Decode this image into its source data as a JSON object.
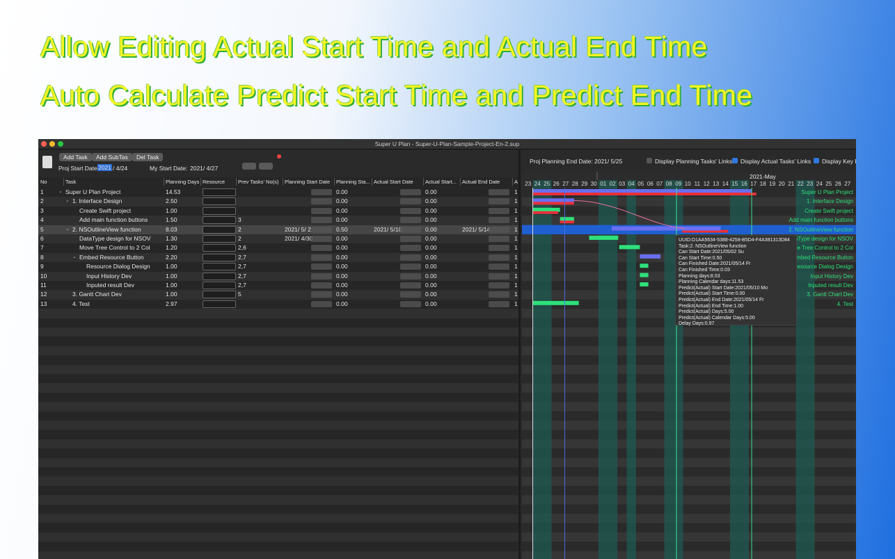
{
  "headline": [
    "Allow Editing Actual Start Time and Actual End Time",
    "Auto Calculate Predict Start Time and Predict End Time"
  ],
  "window": {
    "title": "Super U Plan - Super-U-Plan-Sample-Project-En-2.sup"
  },
  "toolbar": {
    "buttons": [
      "Add Task",
      "Add SubTas",
      "Del Task"
    ],
    "proj_start_label": "Proj Start Date:",
    "proj_start_year": "2021",
    "proj_start_rest": "/  4/24",
    "my_start_label": "My Start Date:",
    "my_start_date": "2021/  4/27"
  },
  "gantt_toolbar": {
    "end_label": "Proj Planning End Date:",
    "end_date": "2021/  5/25",
    "options": [
      {
        "label": "Display Planning Tasks' Links",
        "checked": false
      },
      {
        "label": "Display Actual Tasks' Links",
        "checked": true
      },
      {
        "label": "Display Key R",
        "checked": true
      }
    ]
  },
  "table": {
    "columns": [
      "No",
      "Task",
      "Planning Days",
      "Resource",
      "Prev Tasks' No(s)",
      "Planning Start Date",
      "Planning Sta...",
      "Actual Start Date",
      "Actual Start...",
      "Actual End Date",
      "A"
    ],
    "rows": [
      {
        "no": "1",
        "task": "Super U Plan Project",
        "level": 0,
        "expandable": true,
        "days": "14.53",
        "plan_start_time": "0.00",
        "actual_start_time": "0.00",
        "more": "1"
      },
      {
        "no": "2",
        "task": "1. Interface Design",
        "level": 1,
        "expandable": true,
        "days": "2.50",
        "plan_start_time": "0.00",
        "actual_start_time": "0.00",
        "more": "1"
      },
      {
        "no": "3",
        "task": "Create Swift project",
        "level": 2,
        "days": "1.00",
        "plan_start_time": "0.00",
        "actual_start_time": "0.00",
        "more": "1"
      },
      {
        "no": "4",
        "task": "Add main function buttons",
        "level": 2,
        "days": "1.50",
        "prev": "3",
        "plan_start_time": "0.00",
        "actual_start_time": "0.00",
        "more": "1"
      },
      {
        "no": "5",
        "task": "2. NSOutlineView function",
        "level": 1,
        "expandable": true,
        "selected": true,
        "days": "8.03",
        "prev": "2",
        "plan_start_date": "2021/  5/  2",
        "plan_start_time": "0.50",
        "actual_start_date": "2021/  5/10",
        "actual_start_time": "0.00",
        "actual_end_date": "2021/  5/14",
        "more": "1"
      },
      {
        "no": "6",
        "task": "DataType design for NSOV",
        "level": 2,
        "days": "1.30",
        "prev": "2",
        "plan_start_date": "2021/  4/30",
        "plan_start_time": "0.00",
        "actual_start_time": "0.00",
        "more": "1"
      },
      {
        "no": "7",
        "task": "Move Tree Control to 2 Col",
        "level": 2,
        "days": "1.20",
        "prev": "2,6",
        "plan_start_time": "0.00",
        "actual_start_time": "0.00",
        "more": "1"
      },
      {
        "no": "8",
        "task": "Embed Resource Button",
        "level": 2,
        "expandable": true,
        "days": "2.20",
        "prev": "2,7",
        "plan_start_time": "0.00",
        "actual_start_time": "0.00",
        "more": "1"
      },
      {
        "no": "9",
        "task": "Resource Dialog Design",
        "level": 3,
        "days": "1.00",
        "prev": "2,7",
        "plan_start_time": "0.00",
        "actual_start_time": "0.00",
        "more": "1"
      },
      {
        "no": "10",
        "task": "Input History Dev",
        "level": 3,
        "days": "1.00",
        "prev": "2,7",
        "plan_start_time": "0.00",
        "actual_start_time": "0.00",
        "more": "1"
      },
      {
        "no": "11",
        "task": "Inputed result Dev",
        "level": 3,
        "days": "1.00",
        "prev": "2,7",
        "plan_start_time": "0.00",
        "actual_start_time": "0.00",
        "more": "1"
      },
      {
        "no": "12",
        "task": "3. Gantt Chart Dev",
        "level": 1,
        "days": "1.00",
        "prev": "5",
        "plan_start_time": "0.00",
        "actual_start_time": "0.00",
        "more": "1"
      },
      {
        "no": "13",
        "task": "4. Test",
        "level": 1,
        "days": "2.97",
        "plan_start_time": "0.00",
        "actual_start_time": "0.00",
        "more": "1"
      }
    ]
  },
  "gantt": {
    "month": "2021-May",
    "days": [
      "23",
      "24",
      "25",
      "26",
      "27",
      "28",
      "29",
      "30",
      "01",
      "02",
      "03",
      "04",
      "05",
      "06",
      "07",
      "08",
      "09",
      "10",
      "11",
      "12",
      "13",
      "14",
      "15",
      "16",
      "17",
      "18",
      "19",
      "20",
      "21",
      "22",
      "23",
      "24",
      "25",
      "26",
      "27"
    ],
    "tooltip": [
      "UUID:D1AA5634-5388-4258-B5D4-F4A381313D84",
      "Task:2. NSOutlineView function",
      "Can Start Date:2021/05/02 Su",
      "Can Start Time:0.50",
      "Can Finished Date:2021/05/14 Fr",
      "Can Finished Time:0.03",
      "Planning days:8.03",
      "Planning Calendar days:11.53",
      "Predict(Actual) Start Date:2021/05/10 Mo",
      "Predict(Actual) Start Time:0.00",
      "Predict(Actual) End Date:2021/05/14 Fr",
      "Predict(Actual) End Time:1.00",
      "Predict(Actual) Days:5.00",
      "Predict(Actual) Calendar Days:5.00",
      "Delay Days:0.97"
    ]
  }
}
